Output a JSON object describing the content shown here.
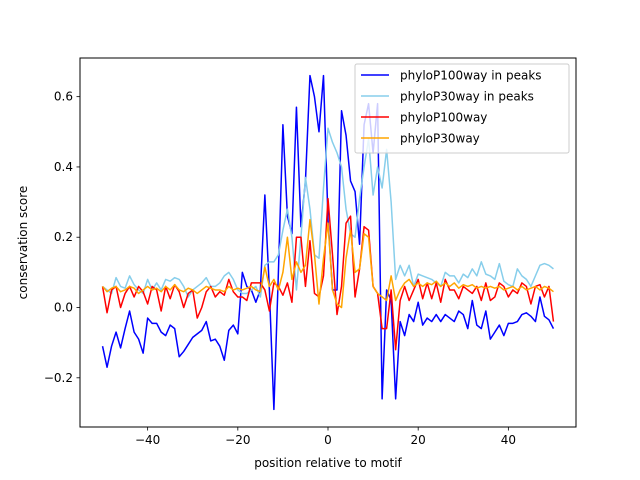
{
  "chart_data": {
    "type": "line",
    "title": "",
    "xlabel": "position relative to motif",
    "ylabel": "conservation score",
    "xlim": [
      -55,
      55
    ],
    "ylim": [
      -0.34,
      0.71
    ],
    "xticks": [
      -40,
      -20,
      0,
      20,
      40
    ],
    "xtick_labels": [
      "−40",
      "−20",
      "0",
      "20",
      "40"
    ],
    "yticks": [
      -0.2,
      0.0,
      0.2,
      0.4,
      0.6
    ],
    "ytick_labels": [
      "−0.2",
      "0.0",
      "0.2",
      "0.4",
      "0.6"
    ],
    "legend_position": "top-right",
    "x_start": -50,
    "x_end": 50,
    "series": [
      {
        "name": "phyloP100way in peaks",
        "color": "#0000ff",
        "values": [
          -0.11,
          -0.17,
          -0.11,
          -0.07,
          -0.115,
          -0.06,
          -0.01,
          -0.07,
          -0.09,
          -0.13,
          -0.03,
          -0.045,
          -0.045,
          -0.07,
          -0.08,
          -0.05,
          -0.06,
          -0.14,
          -0.125,
          -0.105,
          -0.085,
          -0.075,
          -0.065,
          -0.04,
          -0.095,
          -0.09,
          -0.11,
          -0.15,
          -0.065,
          -0.05,
          -0.075,
          0.1,
          0.06,
          0.05,
          0.015,
          0.05,
          0.32,
          0.05,
          -0.29,
          0.1,
          0.52,
          0.26,
          0.21,
          0.57,
          0.23,
          0.36,
          0.66,
          0.6,
          0.5,
          0.66,
          0.25,
          0.05,
          0.05,
          0.56,
          0.49,
          0.36,
          0.33,
          0.18,
          0.52,
          0.58,
          0.44,
          0.58,
          -0.26,
          0.05,
          0.02,
          -0.26,
          -0.04,
          -0.08,
          -0.02,
          -0.04,
          0.015,
          -0.05,
          -0.03,
          -0.04,
          -0.02,
          -0.04,
          -0.02,
          -0.03,
          -0.04,
          -0.01,
          -0.02,
          -0.06,
          0.02,
          -0.05,
          -0.06,
          -0.01,
          -0.09,
          -0.07,
          -0.05,
          -0.08,
          -0.045,
          -0.045,
          -0.04,
          -0.02,
          -0.015,
          -0.025,
          -0.04,
          0.03,
          -0.025,
          -0.035,
          -0.06
        ]
      },
      {
        "name": "phyloP30way in peaks",
        "color": "#87ceeb",
        "values": [
          0.06,
          0.05,
          0.04,
          0.085,
          0.06,
          0.055,
          0.09,
          0.065,
          0.05,
          0.04,
          0.08,
          0.05,
          0.07,
          0.05,
          0.08,
          0.075,
          0.085,
          0.08,
          0.06,
          0.03,
          0.05,
          0.06,
          0.07,
          0.085,
          0.06,
          0.06,
          0.07,
          0.09,
          0.1,
          0.08,
          0.05,
          0.04,
          0.04,
          0.05,
          0.06,
          0.03,
          0.12,
          0.13,
          0.13,
          0.15,
          0.22,
          0.28,
          0.2,
          0.05,
          0.2,
          0.37,
          0.28,
          0.15,
          0.14,
          0.34,
          0.51,
          0.47,
          0.44,
          0.4,
          0.28,
          0.21,
          0.2,
          0.31,
          0.4,
          0.48,
          0.32,
          0.4,
          0.34,
          0.45,
          0.3,
          0.08,
          0.12,
          0.09,
          0.12,
          0.06,
          0.095,
          0.09,
          0.085,
          0.08,
          0.07,
          0.06,
          0.1,
          0.09,
          0.09,
          0.07,
          0.095,
          0.085,
          0.11,
          0.09,
          0.13,
          0.095,
          0.09,
          0.08,
          0.125,
          0.075,
          0.065,
          0.06,
          0.11,
          0.09,
          0.08,
          0.06,
          0.09,
          0.12,
          0.125,
          0.12,
          0.11,
          0.09
        ]
      },
      {
        "name": "phyloP100way",
        "color": "#ff0000",
        "values": [
          0.06,
          -0.015,
          0.05,
          0.06,
          0.0,
          0.04,
          0.06,
          0.03,
          0.06,
          0.045,
          0.01,
          0.06,
          0.05,
          -0.01,
          0.06,
          0.025,
          0.065,
          0.045,
          0.0,
          0.04,
          0.05,
          -0.03,
          0.0,
          0.045,
          0.06,
          0.03,
          0.045,
          0.035,
          0.08,
          0.045,
          0.03,
          0.03,
          0.02,
          0.07,
          0.07,
          0.07,
          0.05,
          -0.01,
          0.07,
          0.06,
          0.035,
          0.07,
          0.015,
          0.2,
          0.2,
          0.06,
          0.19,
          0.04,
          0.03,
          0.09,
          0.31,
          0.15,
          -0.02,
          0.06,
          0.24,
          0.26,
          0.03,
          0.11,
          0.23,
          0.22,
          0.06,
          0.04,
          -0.06,
          -0.06,
          0.05,
          -0.12,
          0.02,
          0.06,
          0.02,
          0.05,
          0.08,
          0.025,
          0.07,
          0.025,
          0.07,
          0.015,
          0.08,
          0.05,
          0.05,
          0.025,
          0.06,
          0.05,
          0.04,
          0.06,
          0.02,
          0.07,
          0.02,
          0.03,
          0.07,
          0.06,
          0.03,
          0.05,
          0.04,
          0.07,
          0.06,
          0.01,
          0.06,
          0.065,
          0.03,
          0.06,
          -0.04
        ]
      },
      {
        "name": "phyloP30way",
        "color": "#ffa500",
        "values": [
          0.06,
          0.045,
          0.055,
          0.06,
          0.045,
          0.05,
          0.06,
          0.055,
          0.04,
          0.05,
          0.06,
          0.05,
          0.055,
          0.045,
          0.06,
          0.05,
          0.065,
          0.05,
          0.045,
          0.055,
          0.05,
          0.04,
          0.05,
          0.06,
          0.055,
          0.05,
          0.05,
          0.045,
          0.06,
          0.05,
          0.055,
          0.05,
          0.055,
          0.06,
          0.05,
          0.045,
          0.115,
          0.06,
          0.08,
          0.05,
          0.1,
          0.2,
          0.08,
          0.13,
          0.1,
          0.12,
          0.25,
          0.15,
          0.01,
          0.14,
          0.24,
          0.05,
          0.01,
          0.0,
          0.14,
          0.22,
          0.1,
          0.11,
          0.21,
          0.2,
          0.06,
          0.04,
          0.03,
          0.02,
          0.09,
          0.02,
          0.05,
          0.07,
          0.08,
          0.06,
          0.07,
          0.06,
          0.07,
          0.065,
          0.075,
          0.06,
          0.07,
          0.06,
          0.07,
          0.055,
          0.065,
          0.06,
          0.065,
          0.055,
          0.06,
          0.055,
          0.06,
          0.055,
          0.06,
          0.05,
          0.055,
          0.06,
          0.05,
          0.06,
          0.05,
          0.055,
          0.06,
          0.05,
          0.06,
          0.055,
          0.045
        ]
      }
    ]
  }
}
